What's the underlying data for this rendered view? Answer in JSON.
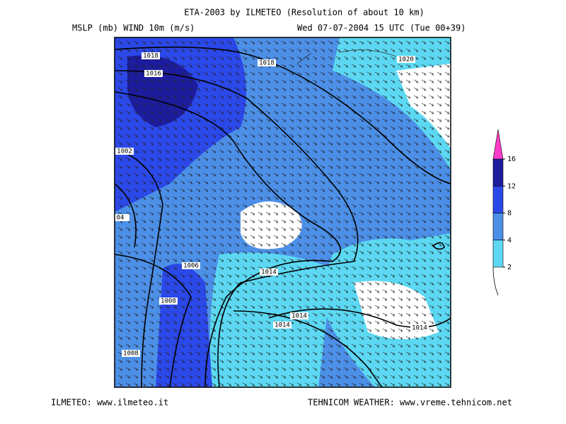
{
  "header": {
    "title": "ETA-2003 by ILMETEO (Resolution of about 10 km)",
    "left": "MSLP (mb)  WIND 10m (m/s)",
    "right": "Wed 07-07-2004 15 UTC (Tue 00+39)"
  },
  "footer": {
    "left": "ILMETEO: www.ilmeteo.it",
    "right": "TEHNICOM WEATHER: www.vreme.tehnicom.net"
  },
  "isobar_labels": [
    "1018",
    "1016",
    "1018",
    "1020",
    "1002",
    "04",
    "1006",
    "1008",
    "1014",
    "1014",
    "1014",
    "1014",
    "1008"
  ],
  "legend": {
    "levels": [
      2,
      4,
      8,
      12,
      16
    ],
    "colors": [
      "#5cd8f2",
      "#4c8fe6",
      "#2b48e8",
      "#1c1c9c"
    ],
    "top_color": "#ff3cc8"
  }
}
